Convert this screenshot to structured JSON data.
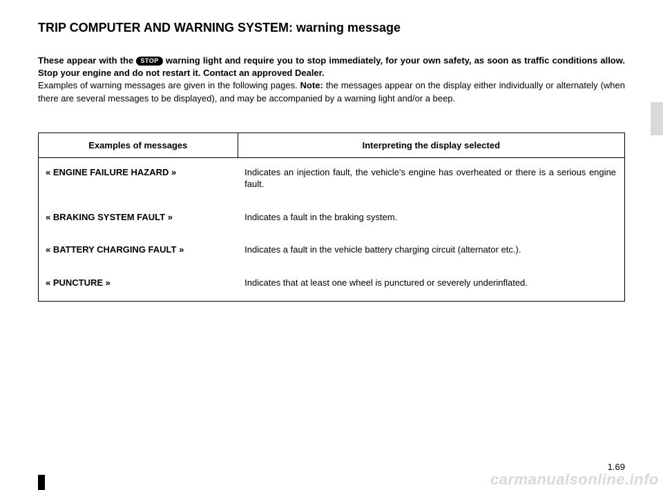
{
  "title": "TRIP COMPUTER AND WARNING SYSTEM: warning message",
  "intro": {
    "part1_bold": "These appear with the ",
    "stop_label": "STOP",
    "part2_bold": " warning light and require you to stop immediately, for your own safety, as soon as traffic conditions allow. Stop your engine and do not restart it. Contact an approved Dealer.",
    "part3": "Examples of warning messages are given in the following pages. ",
    "note_label": "Note:",
    "part4": " the messages appear on the display either individually or alternately (when there are several messages to be displayed), and may be accompanied by a warning light and/or a beep."
  },
  "table": {
    "header_left": "Examples of messages",
    "header_right": "Interpreting the display selected",
    "rows": [
      {
        "msg": "« ENGINE FAILURE HAZARD »",
        "interp": "Indicates an injection fault, the vehicle's engine has overheated or there is a serious engine fault."
      },
      {
        "msg": "« BRAKING SYSTEM FAULT »",
        "interp": "Indicates a fault in the braking system."
      },
      {
        "msg": "« BATTERY CHARGING FAULT »",
        "interp": "Indicates a fault in the vehicle battery charging circuit (alternator etc.)."
      },
      {
        "msg": "« PUNCTURE »",
        "interp": "Indicates that at least one wheel is punctured or severely underinflated."
      }
    ]
  },
  "page_number": "1.69",
  "watermark": "carmanualsonline.info"
}
